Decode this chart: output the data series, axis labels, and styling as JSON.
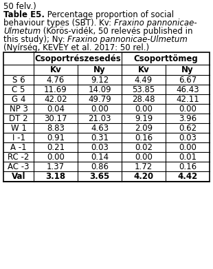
{
  "col_headers_top": [
    "Csoportrészesedés",
    "Csoporttömeg"
  ],
  "col_headers_sub": [
    "Kv",
    "Ny",
    "Kv",
    "Ny"
  ],
  "row_labels": [
    "S 6",
    "C 5",
    "G 4",
    "NP 3",
    "DT 2",
    "W 1",
    "I -1",
    "A -1",
    "RC -2",
    "AC -3",
    "Val"
  ],
  "data": [
    [
      4.76,
      9.12,
      4.49,
      6.67
    ],
    [
      11.69,
      14.09,
      53.85,
      46.43
    ],
    [
      42.02,
      49.79,
      28.48,
      42.11
    ],
    [
      0.04,
      0.0,
      0.0,
      0.0
    ],
    [
      30.17,
      21.03,
      9.19,
      3.96
    ],
    [
      8.83,
      4.63,
      2.09,
      0.62
    ],
    [
      0.91,
      0.31,
      0.16,
      0.03
    ],
    [
      0.21,
      0.03,
      0.02,
      0.0
    ],
    [
      0.0,
      0.14,
      0.0,
      0.01
    ],
    [
      1.37,
      0.86,
      1.72,
      0.16
    ],
    [
      3.18,
      3.65,
      4.2,
      4.42
    ]
  ],
  "bg_color": "#ffffff",
  "text_color": "#000000",
  "figsize": [
    3.1,
    3.91
  ],
  "dpi": 100,
  "caption_line0": "50 felv.)",
  "caption_line1_parts": [
    {
      "text": "Table E5.",
      "bold": true,
      "italic": false
    },
    {
      "text": " Percentage proportion of social",
      "bold": false,
      "italic": false
    }
  ],
  "caption_line2_parts": [
    {
      "text": "behaviour types (SBT). Kv: ",
      "bold": false,
      "italic": false
    },
    {
      "text": "Fraxino pannonicae-",
      "bold": false,
      "italic": true
    }
  ],
  "caption_line3_parts": [
    {
      "text": "Ulmetum",
      "bold": false,
      "italic": true
    },
    {
      "text": " (Körös-vidék, 50 relevés published in",
      "bold": false,
      "italic": false
    }
  ],
  "caption_line4_parts": [
    {
      "text": "this study); Ny: ",
      "bold": false,
      "italic": false
    },
    {
      "text": "Fraxino pannonicae-Ulmetum",
      "bold": false,
      "italic": true
    }
  ],
  "caption_line5_parts": [
    {
      "text": "(Nyírség, KEVEY et al. 2017: 50 rel.)",
      "bold": false,
      "italic": false
    }
  ]
}
